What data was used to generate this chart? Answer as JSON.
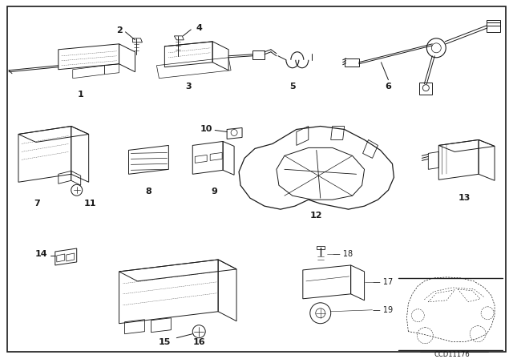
{
  "background": "#ffffff",
  "border": "#000000",
  "dark": "#1a1a1a",
  "diagram_code": "CCD11176",
  "fig_w": 6.4,
  "fig_h": 4.48,
  "dpi": 100
}
